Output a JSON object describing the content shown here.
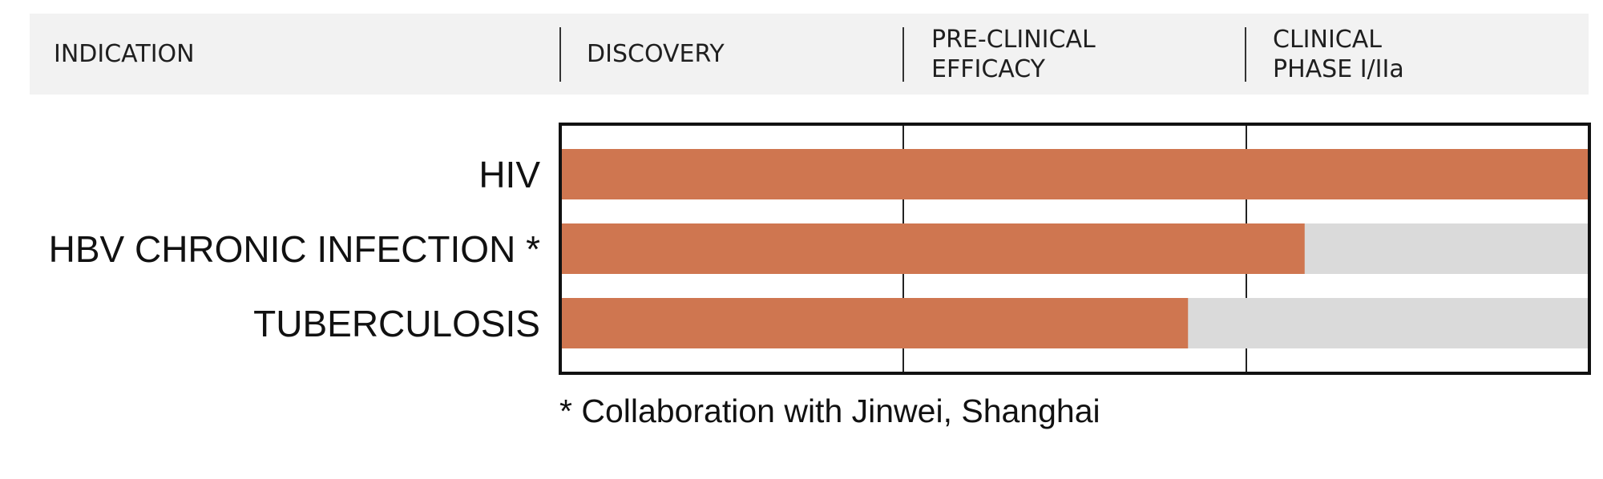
{
  "chart_data": {
    "type": "bar",
    "orientation": "horizontal",
    "stage_headers": [
      {
        "label": "INDICATION"
      },
      {
        "label": "DISCOVERY"
      },
      {
        "label": "PRE-CLINICAL",
        "label_line2": "EFFICACY"
      },
      {
        "label": "CLINICAL",
        "label_line2": "PHASE I/IIa"
      }
    ],
    "stages": [
      "DISCOVERY",
      "PRE-CLINICAL EFFICACY",
      "CLINICAL PHASE I/IIa"
    ],
    "categories": [
      "HIV",
      "HBV CHRONIC INFECTION *",
      "TUBERCULOSIS"
    ],
    "values": [
      3.0,
      2.17,
      1.83
    ],
    "xlim": [
      0,
      3
    ],
    "units": "pipeline stages completed",
    "grid": true,
    "colors": {
      "progress": "#CF7650",
      "remaining": "#DADADA",
      "header_bg": "#F2F2F2",
      "frame": "#111111"
    },
    "footnote": "* Collaboration with Jinwei, Shanghai"
  }
}
